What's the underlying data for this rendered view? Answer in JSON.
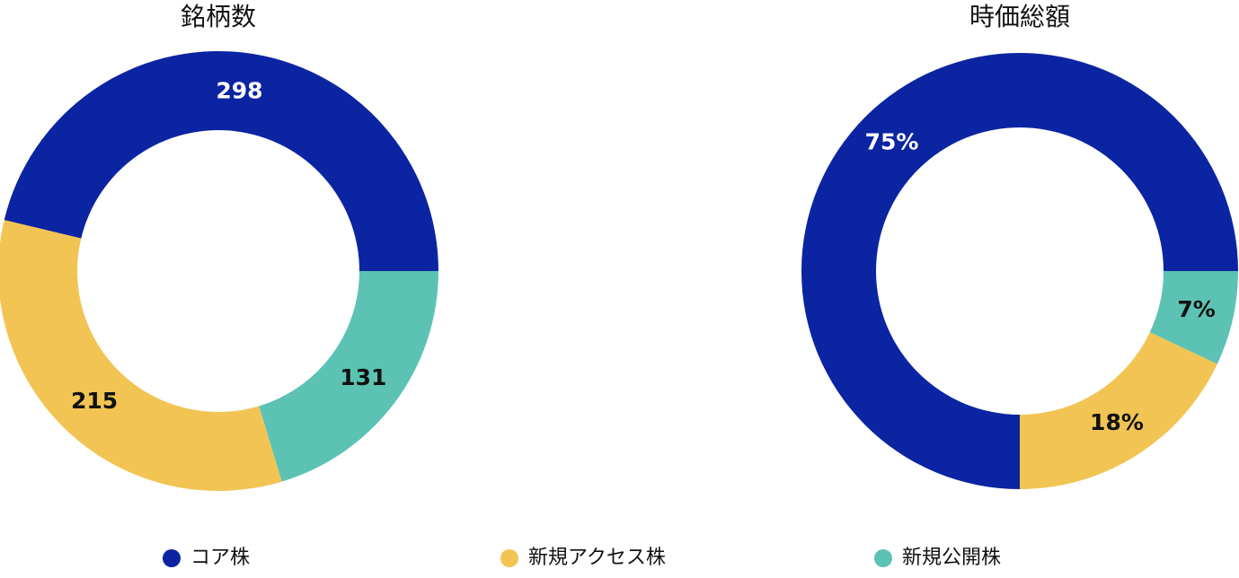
{
  "chart_data": [
    {
      "type": "donut",
      "title": "銘柄数",
      "categories": [
        "コア株",
        "新規アクセス株",
        "新規公開株"
      ],
      "values": [
        298,
        215,
        131
      ],
      "colors": [
        "#0b24a1",
        "#f2c453",
        "#5cc2b4"
      ]
    },
    {
      "type": "donut",
      "title": "時価総額",
      "categories": [
        "コア株",
        "新規アクセス株",
        "新規公開株"
      ],
      "values": [
        75,
        18,
        7
      ],
      "value_labels": [
        "75%",
        "18%",
        "7%"
      ],
      "colors": [
        "#0b24a1",
        "#f2c453",
        "#5cc2b4"
      ]
    }
  ]
}
